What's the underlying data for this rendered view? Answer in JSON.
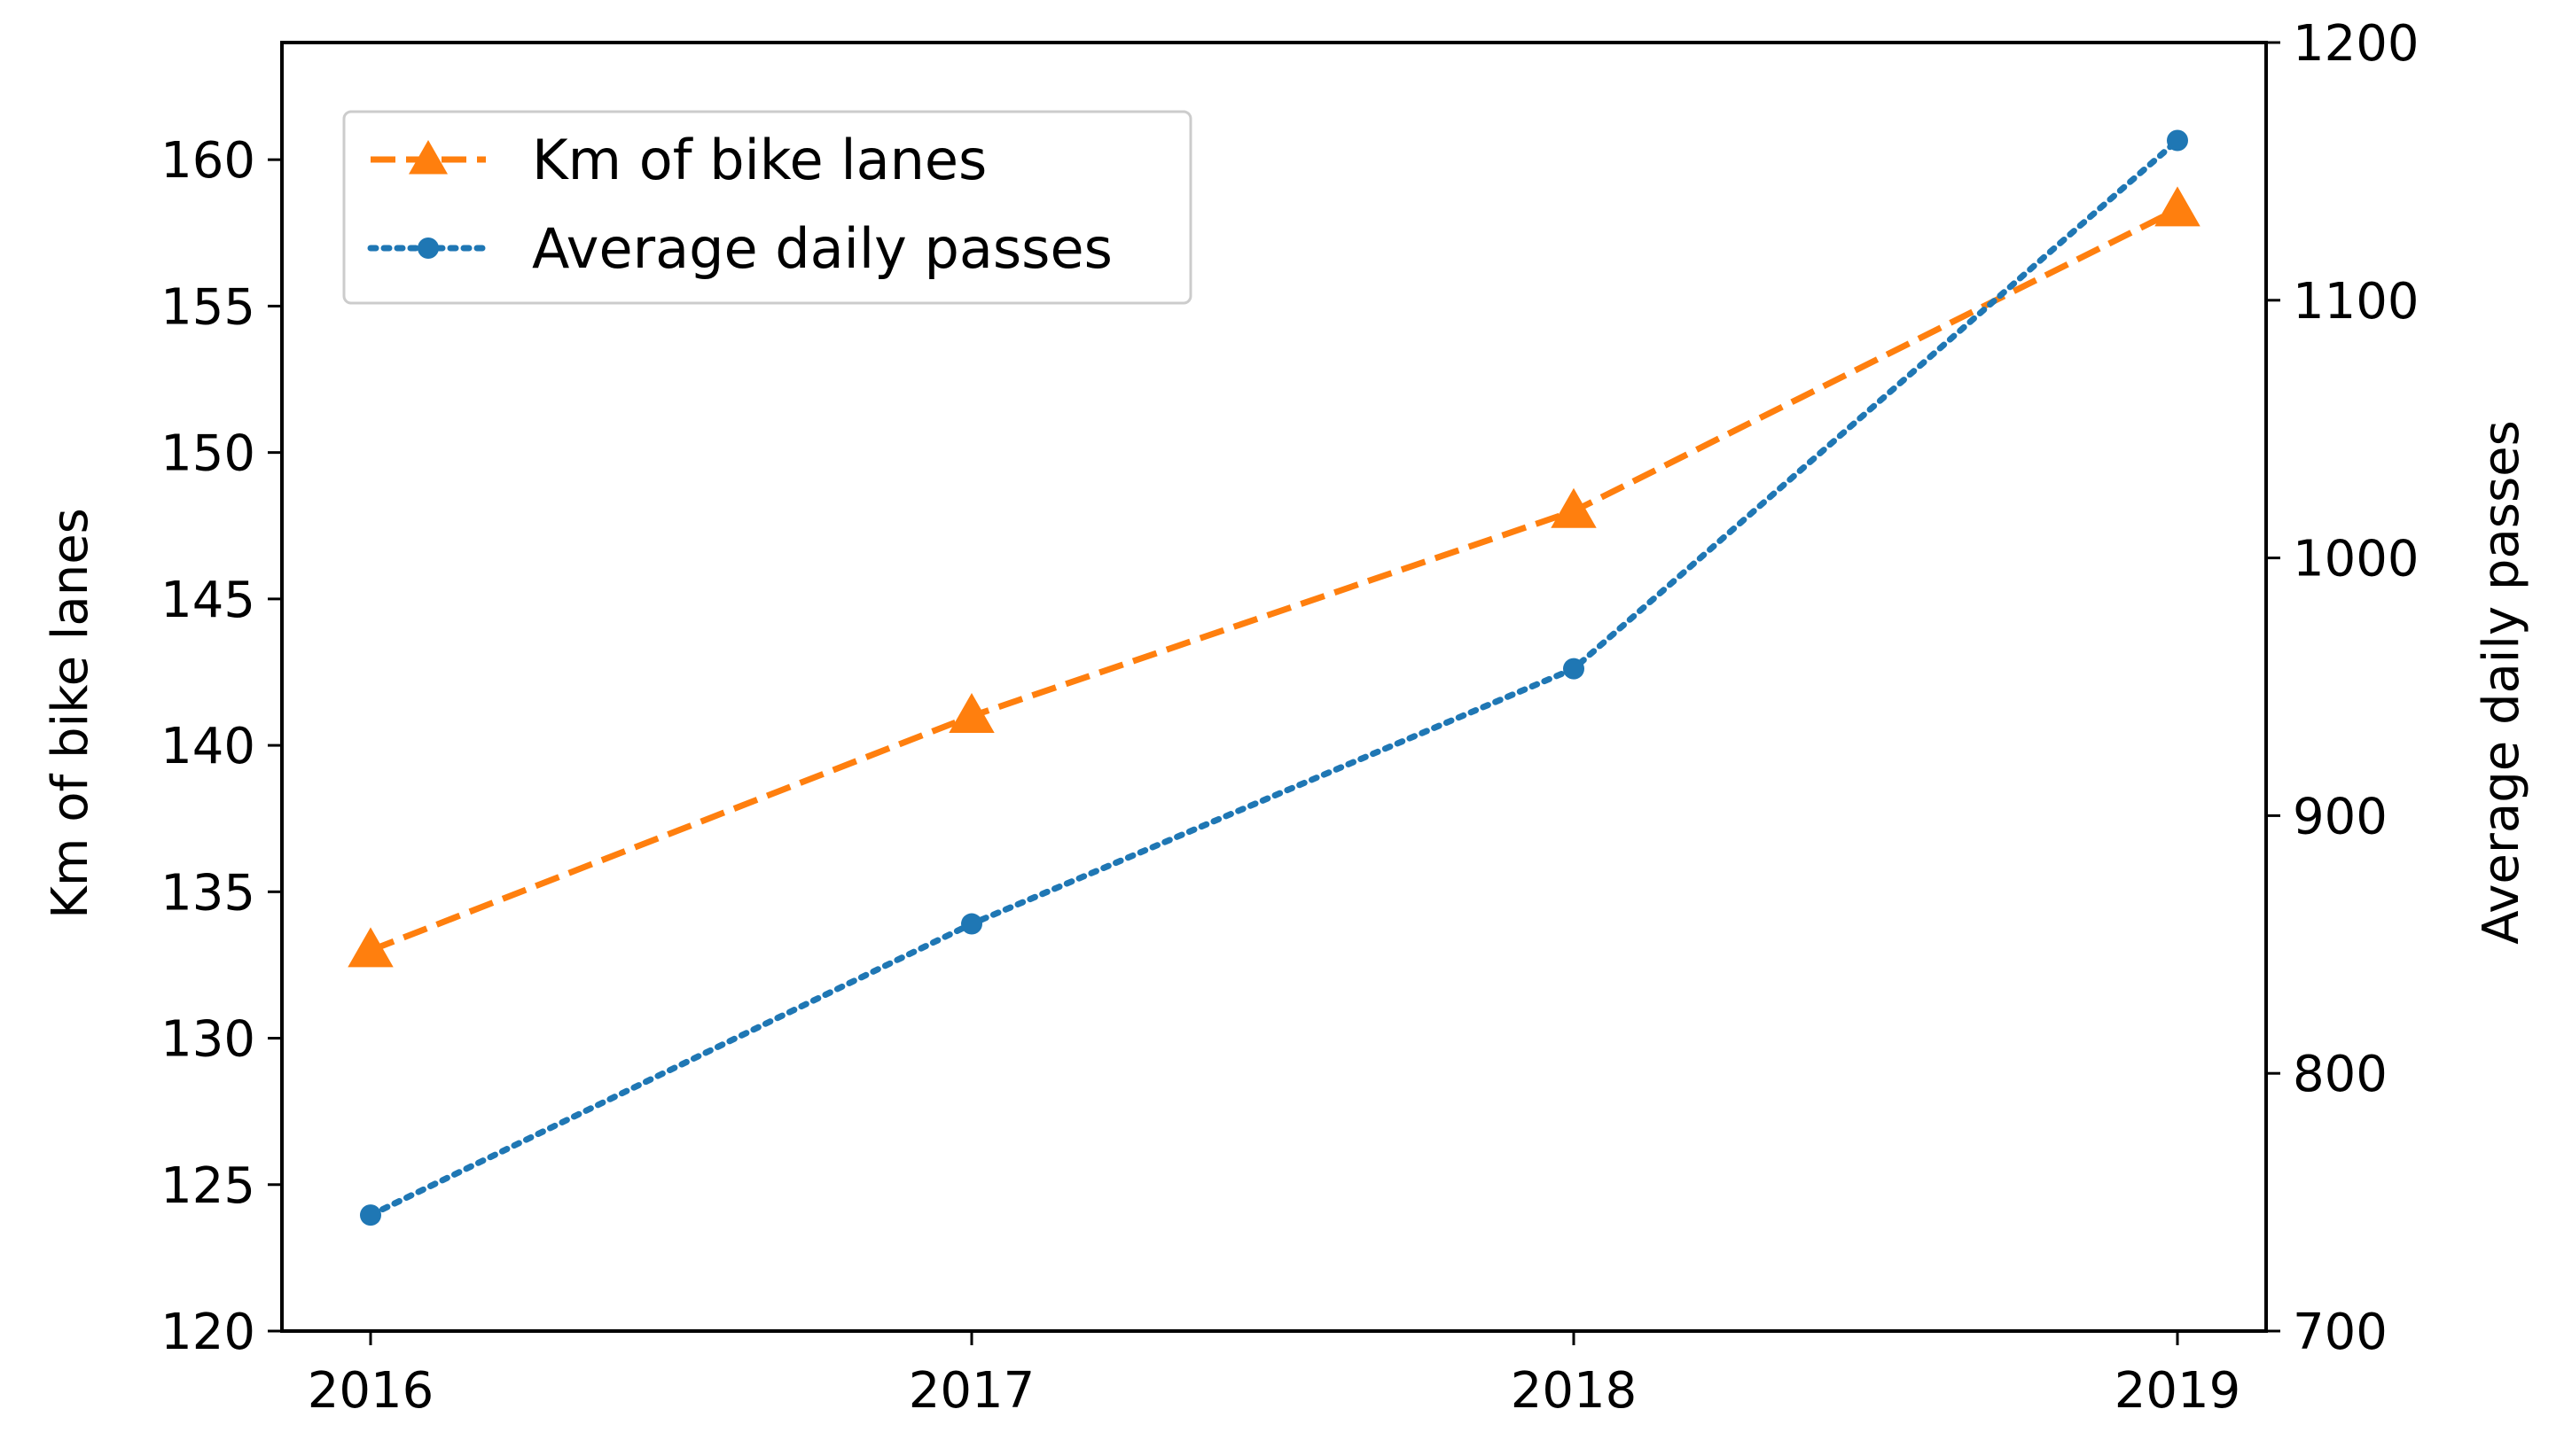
{
  "chart_data": {
    "type": "line",
    "title": "",
    "xlabel": "",
    "ylabel": "Km of bike lanes",
    "y2label": "Average daily passes",
    "categories": [
      "2016",
      "2017",
      "2018",
      "2019"
    ],
    "ylim": [
      120,
      164
    ],
    "y2lim": [
      700,
      1200
    ],
    "yticks": [
      120,
      125,
      130,
      135,
      140,
      145,
      150,
      155,
      160
    ],
    "y2ticks": [
      700,
      800,
      900,
      1000,
      1100,
      1200
    ],
    "grid": false,
    "legend_position": "top-left",
    "series": [
      {
        "name": "Km of bike lanes",
        "axis": "left",
        "values": [
          133.0,
          141.0,
          148.0,
          158.3
        ],
        "color": "#ff7f0e",
        "line_style": "dashed",
        "marker": "triangle"
      },
      {
        "name": "Average daily passes",
        "axis": "right",
        "values": [
          745,
          858,
          957,
          1162
        ],
        "color": "#1f77b4",
        "line_style": "dotted",
        "marker": "circle"
      }
    ]
  }
}
